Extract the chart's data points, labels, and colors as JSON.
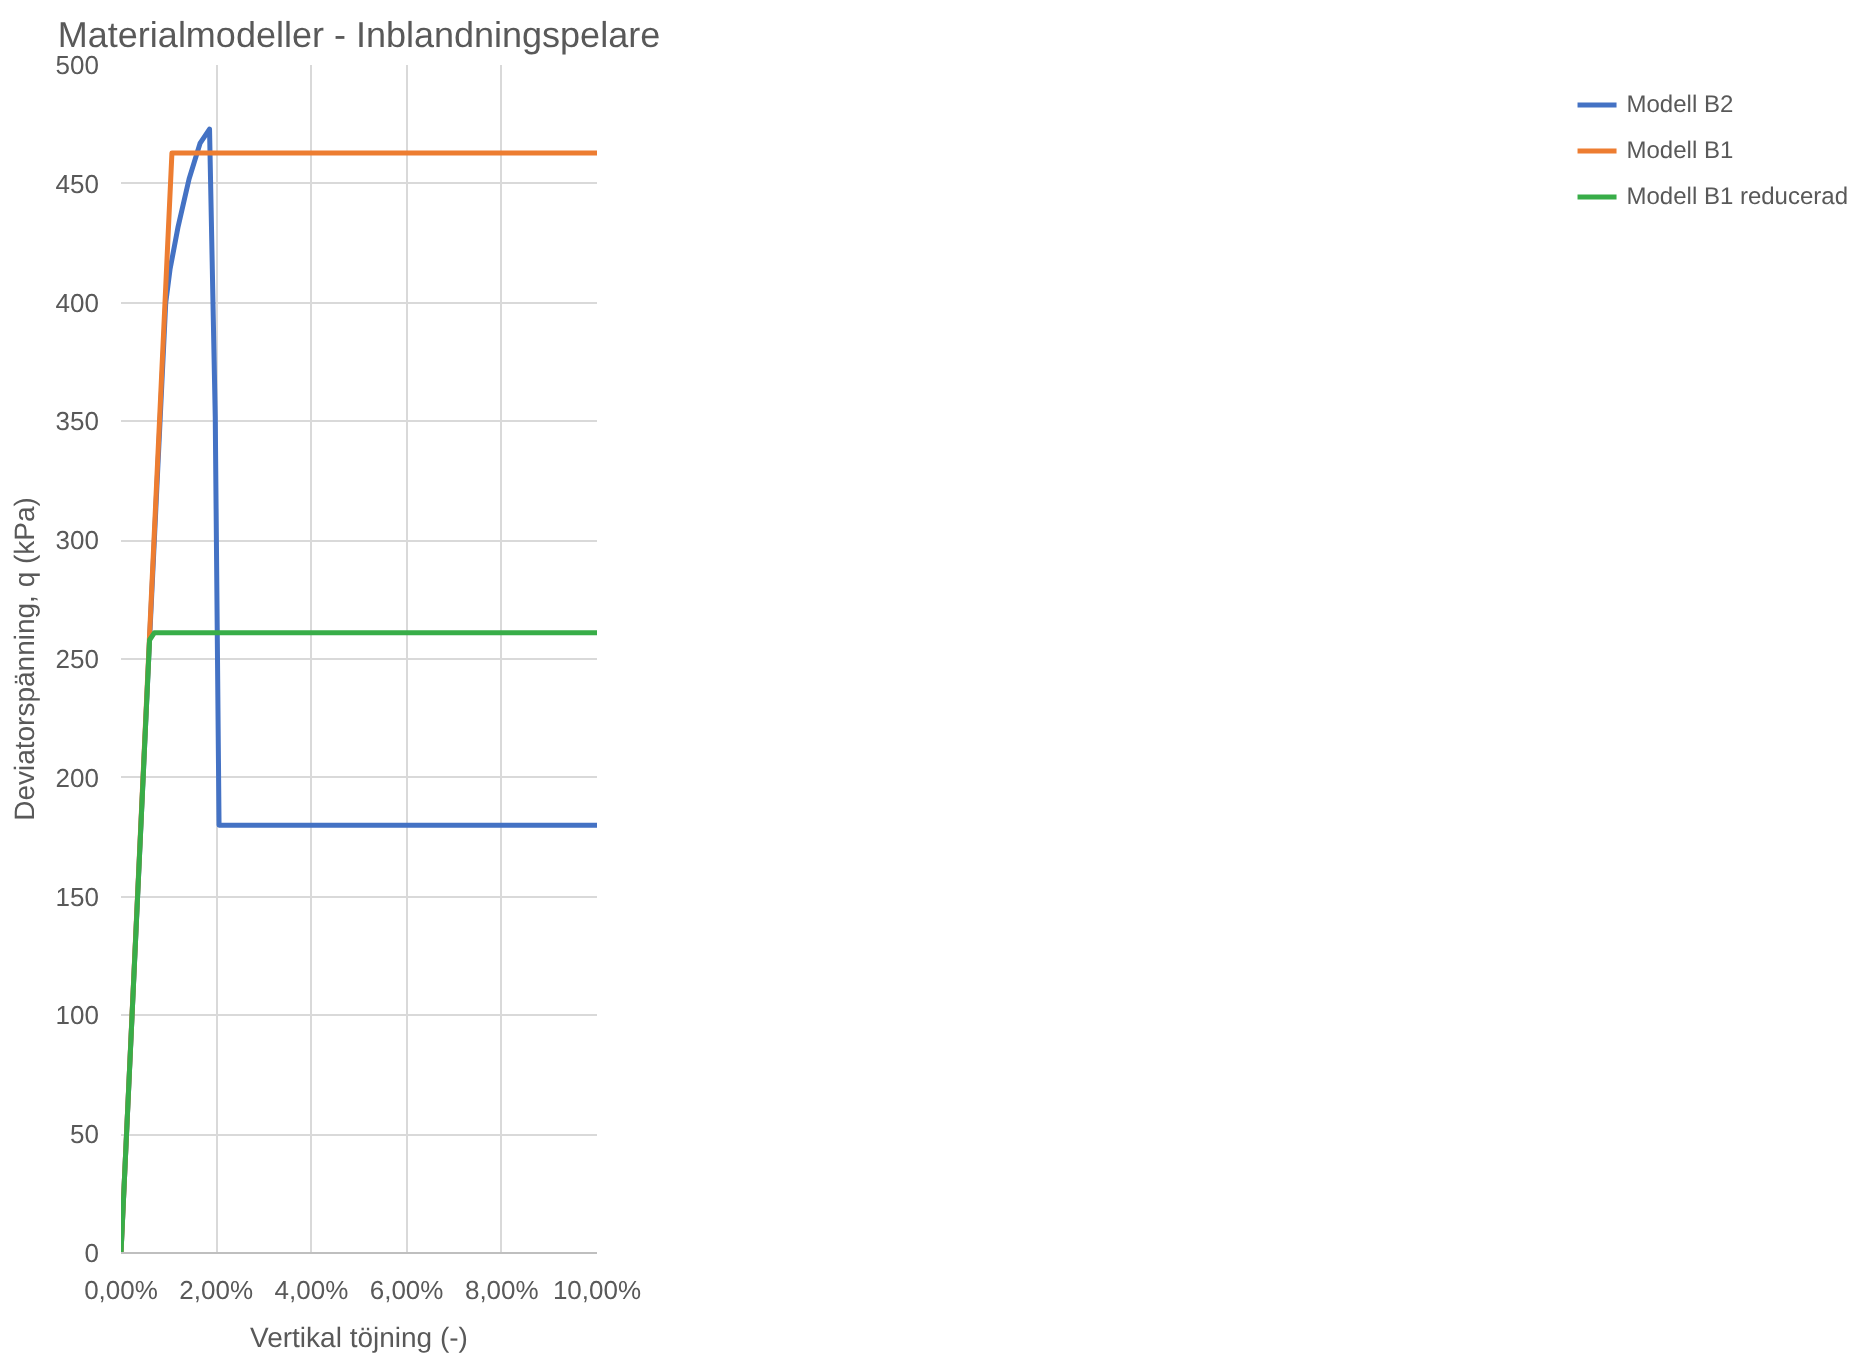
{
  "chart_data": {
    "type": "line",
    "title": "Materialmodeller - Inblandningspelare",
    "xlabel": "Vertikal töjning (-)",
    "ylabel": "Deviatorspänning, q (kPa)",
    "xlim": [
      0,
      10
    ],
    "ylim": [
      0,
      500
    ],
    "xticks": [
      {
        "value": 0,
        "label": "0,00%"
      },
      {
        "value": 2,
        "label": "2,00%"
      },
      {
        "value": 4,
        "label": "4,00%"
      },
      {
        "value": 6,
        "label": "6,00%"
      },
      {
        "value": 8,
        "label": "8,00%"
      },
      {
        "value": 10,
        "label": "10,00%"
      }
    ],
    "yticks": [
      0,
      50,
      100,
      150,
      200,
      250,
      300,
      350,
      400,
      450,
      500
    ],
    "grid": true,
    "legend": "right",
    "marker": "none",
    "line_style": "solid",
    "series": [
      {
        "name": "Modell B2",
        "color": "#4472c4",
        "x": [
          0,
          0.6,
          0.94,
          1.03,
          1.2,
          1.43,
          1.66,
          1.86,
          1.98,
          2.06,
          10
        ],
        "values": [
          0,
          258,
          400,
          414,
          432,
          452,
          467,
          473,
          352,
          180,
          180
        ]
      },
      {
        "name": "Modell B1",
        "color": "#ed7d31",
        "x": [
          0,
          0.6,
          1.07,
          10
        ],
        "values": [
          0,
          260,
          463,
          463
        ]
      },
      {
        "name": "Modell B1 reducerad",
        "color": "#38ad48",
        "x": [
          0,
          0.6,
          0.7,
          10
        ],
        "values": [
          0,
          258,
          261,
          261
        ]
      }
    ]
  }
}
